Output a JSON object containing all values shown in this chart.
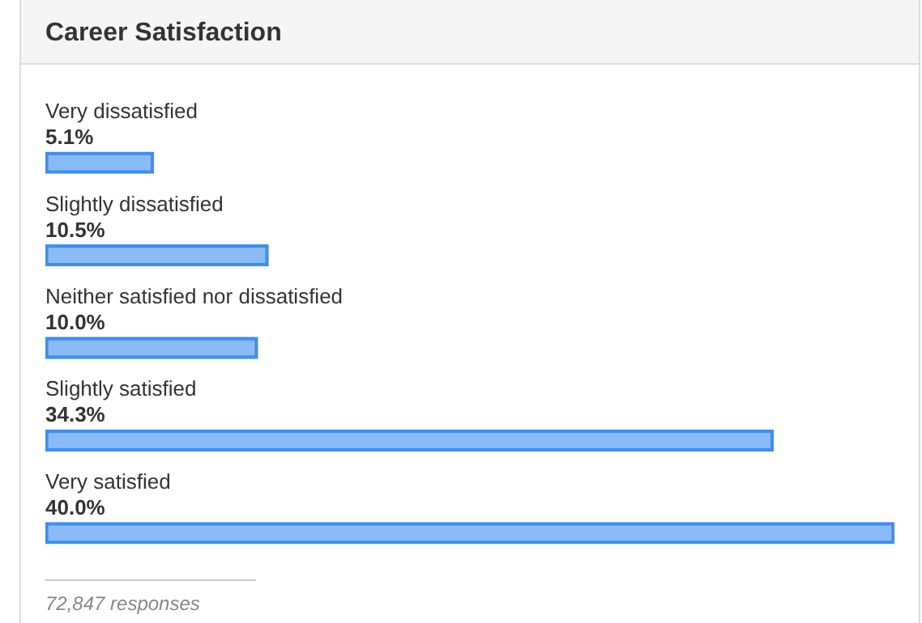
{
  "chart_data": {
    "type": "bar",
    "title": "Career Satisfaction",
    "orientation": "horizontal",
    "categories": [
      "Very dissatisfied",
      "Slightly dissatisfied",
      "Neither satisfied nor dissatisfied",
      "Slightly satisfied",
      "Very satisfied"
    ],
    "values": [
      5.1,
      10.5,
      10.0,
      34.3,
      40.0
    ],
    "value_labels": [
      "5.1%",
      "10.5%",
      "10.0%",
      "34.3%",
      "40.0%"
    ],
    "color": "#3d8ef0",
    "xlim": [
      0,
      40
    ],
    "tick_labels": false,
    "annotations": [
      "72,847 responses"
    ]
  }
}
